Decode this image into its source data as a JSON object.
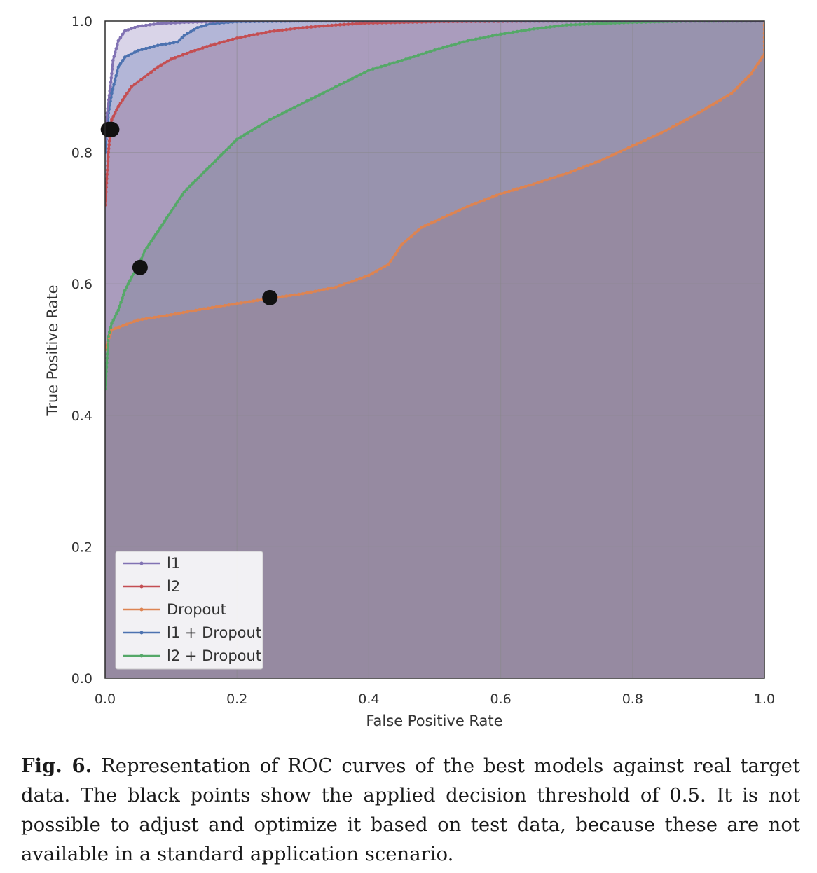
{
  "chart_data": {
    "type": "line",
    "xlabel": "False Positive Rate",
    "ylabel": "True Positive Rate",
    "xlim": [
      0,
      1
    ],
    "ylim": [
      0,
      1
    ],
    "x_ticks": [
      "0.0",
      "0.2",
      "0.4",
      "0.6",
      "0.8",
      "1.0"
    ],
    "y_ticks": [
      "0.0",
      "0.2",
      "0.4",
      "0.6",
      "0.8",
      "1.0"
    ],
    "grid": true,
    "legend_position": "lower-left",
    "series": [
      {
        "name": "Dropout",
        "color": "#dd8452",
        "points": [
          [
            0,
            0
          ],
          [
            0,
            0.5
          ],
          [
            0.01,
            0.53
          ],
          [
            0.05,
            0.545
          ],
          [
            0.1,
            0.553
          ],
          [
            0.15,
            0.562
          ],
          [
            0.2,
            0.57
          ],
          [
            0.25,
            0.578
          ],
          [
            0.3,
            0.585
          ],
          [
            0.35,
            0.595
          ],
          [
            0.4,
            0.613
          ],
          [
            0.43,
            0.63
          ],
          [
            0.45,
            0.66
          ],
          [
            0.48,
            0.686
          ],
          [
            0.5,
            0.695
          ],
          [
            0.55,
            0.718
          ],
          [
            0.6,
            0.737
          ],
          [
            0.65,
            0.752
          ],
          [
            0.7,
            0.768
          ],
          [
            0.75,
            0.787
          ],
          [
            0.8,
            0.81
          ],
          [
            0.85,
            0.833
          ],
          [
            0.9,
            0.86
          ],
          [
            0.95,
            0.89
          ],
          [
            0.98,
            0.92
          ],
          [
            1,
            0.95
          ],
          [
            1,
            1
          ]
        ],
        "threshold_point": [
          0.25,
          0.579
        ]
      },
      {
        "name": "l2 + Dropout",
        "color": "#55a868",
        "points": [
          [
            0,
            0
          ],
          [
            0,
            0.44
          ],
          [
            0.005,
            0.52
          ],
          [
            0.01,
            0.54
          ],
          [
            0.02,
            0.56
          ],
          [
            0.03,
            0.59
          ],
          [
            0.04,
            0.61
          ],
          [
            0.05,
            0.626
          ],
          [
            0.06,
            0.65
          ],
          [
            0.08,
            0.68
          ],
          [
            0.1,
            0.71
          ],
          [
            0.12,
            0.74
          ],
          [
            0.15,
            0.77
          ],
          [
            0.18,
            0.8
          ],
          [
            0.2,
            0.82
          ],
          [
            0.25,
            0.85
          ],
          [
            0.3,
            0.875
          ],
          [
            0.35,
            0.9
          ],
          [
            0.4,
            0.925
          ],
          [
            0.45,
            0.94
          ],
          [
            0.5,
            0.956
          ],
          [
            0.55,
            0.97
          ],
          [
            0.6,
            0.98
          ],
          [
            0.65,
            0.988
          ],
          [
            0.7,
            0.994
          ],
          [
            0.8,
            0.998
          ],
          [
            0.9,
            1
          ],
          [
            1,
            1
          ]
        ],
        "threshold_point": [
          0.053,
          0.625
        ]
      },
      {
        "name": "l2",
        "color": "#c44e52",
        "points": [
          [
            0,
            0
          ],
          [
            0,
            0.72
          ],
          [
            0.005,
            0.8
          ],
          [
            0.008,
            0.835
          ],
          [
            0.01,
            0.85
          ],
          [
            0.02,
            0.87
          ],
          [
            0.04,
            0.9
          ],
          [
            0.06,
            0.915
          ],
          [
            0.08,
            0.93
          ],
          [
            0.1,
            0.942
          ],
          [
            0.13,
            0.953
          ],
          [
            0.16,
            0.963
          ],
          [
            0.2,
            0.974
          ],
          [
            0.25,
            0.984
          ],
          [
            0.3,
            0.99
          ],
          [
            0.35,
            0.994
          ],
          [
            0.4,
            0.997
          ],
          [
            0.5,
            0.999
          ],
          [
            0.7,
            1
          ],
          [
            1,
            1
          ]
        ],
        "threshold_point": [
          0.01,
          0.835
        ]
      },
      {
        "name": "l1 + Dropout",
        "color": "#4c72b0",
        "points": [
          [
            0,
            0
          ],
          [
            0,
            0.8
          ],
          [
            0.005,
            0.86
          ],
          [
            0.01,
            0.89
          ],
          [
            0.02,
            0.93
          ],
          [
            0.03,
            0.945
          ],
          [
            0.05,
            0.955
          ],
          [
            0.08,
            0.963
          ],
          [
            0.11,
            0.968
          ],
          [
            0.12,
            0.978
          ],
          [
            0.14,
            0.99
          ],
          [
            0.16,
            0.996
          ],
          [
            0.2,
            0.999
          ],
          [
            0.3,
            1
          ],
          [
            1,
            1
          ]
        ],
        "threshold_point": [
          0.008,
          0.835
        ]
      },
      {
        "name": "l1",
        "color": "#8172b3",
        "points": [
          [
            0,
            0
          ],
          [
            0,
            0.82
          ],
          [
            0.003,
            0.86
          ],
          [
            0.008,
            0.9
          ],
          [
            0.012,
            0.94
          ],
          [
            0.02,
            0.97
          ],
          [
            0.03,
            0.985
          ],
          [
            0.05,
            0.992
          ],
          [
            0.08,
            0.996
          ],
          [
            0.12,
            0.998
          ],
          [
            0.2,
            1
          ],
          [
            1,
            1
          ]
        ],
        "threshold_point": [
          0.005,
          0.835
        ]
      }
    ],
    "legend_order": [
      "l1",
      "l2",
      "Dropout",
      "l1 + Dropout",
      "l2 + Dropout"
    ]
  },
  "caption": {
    "label": "Fig. 6.",
    "text": "Representation of ROC curves of the best models against real target data. The black points show the applied decision threshold of 0.5. It is not possible to adjust and optimize it based on test data, because these are not available in a standard application scenario."
  }
}
